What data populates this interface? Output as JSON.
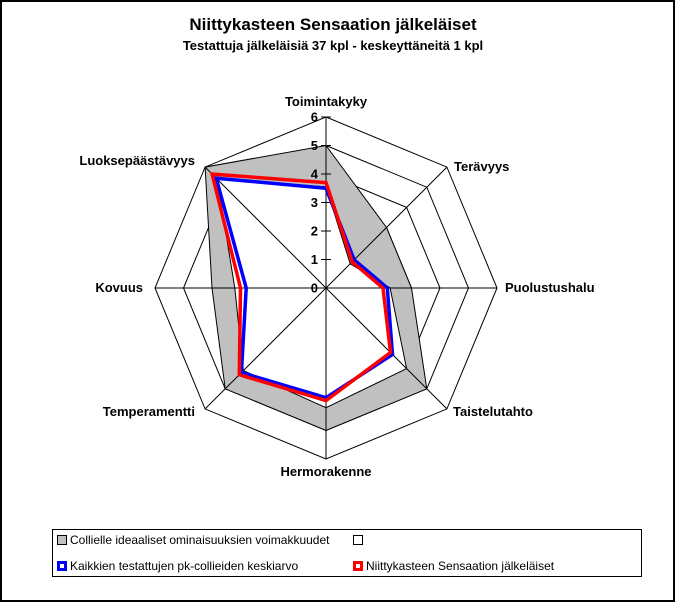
{
  "title": "Niittykasteen Sensaation jälkeläiset",
  "subtitle": "Testattuja jälkeläisiä 37 kpl - keskeyttäneitä 1 kpl",
  "colors": {
    "background": "#ffffff",
    "grid": "#000000",
    "ideal_band_fill": "#c0c0c0",
    "ideal_band_inner_fill": "#ffffff",
    "average_line": "#0000ff",
    "offspring_line": "#ff0000"
  },
  "chart_data": {
    "type": "radar",
    "title": "Niittykasteen Sensaation jälkeläiset",
    "subtitle": "Testattuja jälkeläisiä 37 kpl - keskeyttäneitä 1 kpl",
    "axes": [
      "Toimintakyky",
      "Terävyys",
      "Puolustushalu",
      "Taistelutahto",
      "Hermorakenne",
      "Temperamentti",
      "Kovuus",
      "Luoksepäästävyys"
    ],
    "ticks": [
      0,
      1,
      2,
      3,
      4,
      5,
      6
    ],
    "rmin": 0,
    "rmax": 6,
    "grid": true,
    "legend_position": "bottom",
    "series": [
      {
        "name": "Collielle ideaaliset ominaisuuksien voimakkuudet",
        "type": "area",
        "color": "#c0c0c0",
        "values": [
          5,
          3,
          3,
          5,
          5,
          5,
          4,
          6
        ]
      },
      {
        "name": "",
        "type": "area",
        "color": "#ffffff",
        "values": [
          3.55,
          1.2,
          2.25,
          4.0,
          4.2,
          4.1,
          3.2,
          5.4
        ]
      },
      {
        "name": "Kaikkien testattujen pk-collieiden keskiarvo",
        "type": "line",
        "color": "#0000ff",
        "values": [
          3.5,
          1.4,
          2.15,
          3.3,
          3.85,
          4.2,
          2.8,
          5.45
        ]
      },
      {
        "name": "Niittykasteen Sensaation jälkeläiset",
        "type": "line",
        "color": "#ff0000",
        "values": [
          3.7,
          1.3,
          2.0,
          3.2,
          3.95,
          4.3,
          3.0,
          5.65
        ]
      }
    ]
  },
  "legend": {
    "items": [
      {
        "label": "Collielle ideaaliset ominaisuuksien voimakkuudet",
        "marker_color": "#c0c0c0"
      },
      {
        "label": "",
        "marker_color": "#ffffff"
      },
      {
        "label": "Kaikkien testattujen pk-collieiden keskiarvo",
        "marker_color": "#0000ff"
      },
      {
        "label": "Niittykasteen Sensaation jälkeläiset",
        "marker_color": "#ff0000"
      }
    ]
  }
}
